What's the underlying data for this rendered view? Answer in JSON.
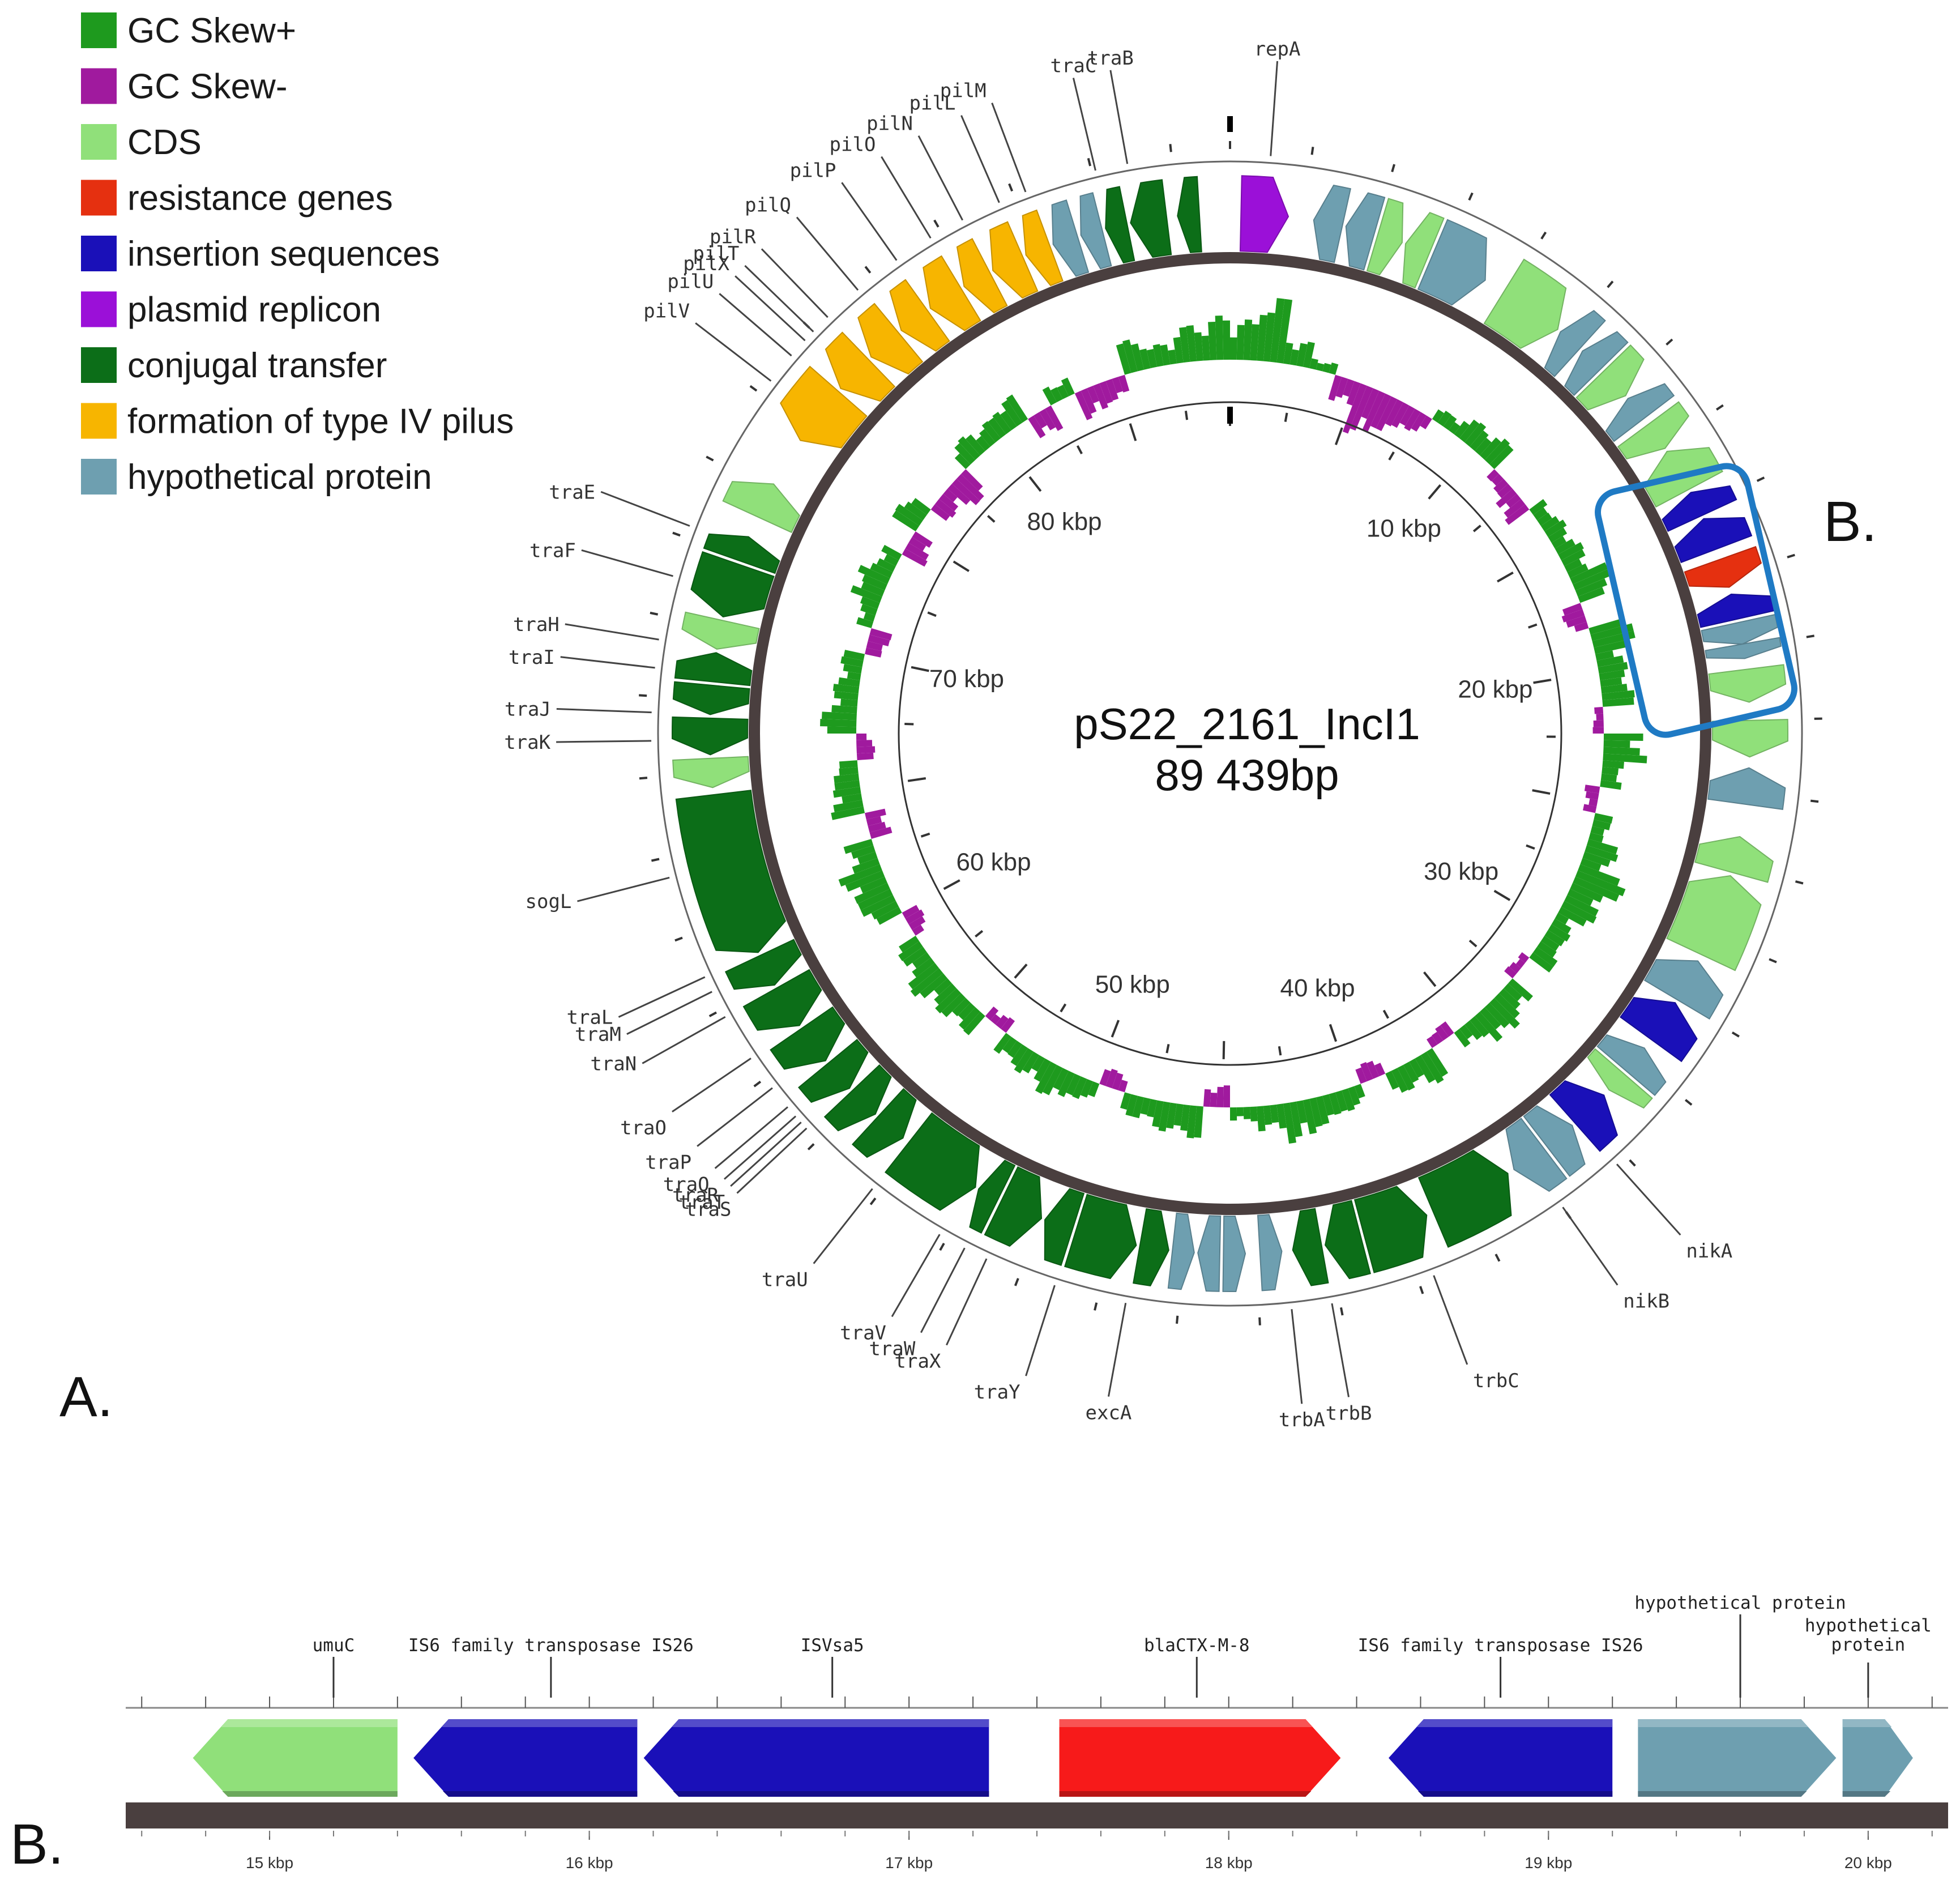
{
  "colors": {
    "gc_pos": "#1e9a1e",
    "gc_neg": "#a01a9e",
    "cds": "#90e07a",
    "resistance": "#e53010",
    "insertion": "#1a10b8",
    "replicon": "#9b10d8",
    "conjugal": "#0c6e18",
    "pilus": "#f7b500",
    "hypothetical": "#6e9fb0",
    "backbone": "#4a3f3f",
    "box": "#1f7ac4",
    "linear_red": "#f71a1a"
  },
  "legend": [
    {
      "label": "GC Skew+",
      "color": "#1e9a1e"
    },
    {
      "label": "GC Skew-",
      "color": "#a01a9e"
    },
    {
      "label": "CDS",
      "color": "#90e07a"
    },
    {
      "label": "resistance genes",
      "color": "#e53010"
    },
    {
      "label": "insertion sequences",
      "color": "#1a10b8"
    },
    {
      "label": "plasmid replicon",
      "color": "#9b10d8"
    },
    {
      "label": "conjugal transfer",
      "color": "#0c6e18"
    },
    {
      "label": "formation of type IV pilus",
      "color": "#f7b500"
    },
    {
      "label": "hypothetical protein",
      "color": "#6e9fb0"
    }
  ],
  "plasmid": {
    "name": "pS22_2161_IncI1",
    "size_label": "89 439bp",
    "length_bp": 89439
  },
  "kbp_labels": [
    "10 kbp",
    "20 kbp",
    "30 kbp",
    "40 kbp",
    "50 kbp",
    "60 kbp",
    "70 kbp",
    "80 kbp"
  ],
  "genes_circular": [
    {
      "name": "repA",
      "kb": 1.0
    },
    {
      "name": "traB",
      "kb": 86.9
    },
    {
      "name": "traC",
      "kb": 86.1
    },
    {
      "name": "pilM",
      "kb": 84.3
    },
    {
      "name": "pilL",
      "kb": 83.6
    },
    {
      "name": "pilN",
      "kb": 82.6
    },
    {
      "name": "pilO",
      "kb": 81.7
    },
    {
      "name": "pilP",
      "kb": 80.7
    },
    {
      "name": "pilQ",
      "kb": 79.5
    },
    {
      "name": "pilR",
      "kb": 78.5
    },
    {
      "name": "pilT",
      "kb": 78.0
    },
    {
      "name": "pilX",
      "kb": 77.7
    },
    {
      "name": "pilU",
      "kb": 77.2
    },
    {
      "name": "pilV",
      "kb": 76.4
    },
    {
      "name": "traE",
      "kb": 72.3
    },
    {
      "name": "traF",
      "kb": 71.0
    },
    {
      "name": "traH",
      "kb": 69.4
    },
    {
      "name": "traI",
      "kb": 68.7
    },
    {
      "name": "traJ",
      "kb": 67.6
    },
    {
      "name": "traK",
      "kb": 66.9
    },
    {
      "name": "sogL",
      "kb": 63.5
    },
    {
      "name": "traL",
      "kb": 60.9
    },
    {
      "name": "traM",
      "kb": 60.5
    },
    {
      "name": "traN",
      "kb": 59.8
    },
    {
      "name": "traO",
      "kb": 58.6
    },
    {
      "name": "traP",
      "kb": 57.7
    },
    {
      "name": "traQ",
      "kb": 57.1
    },
    {
      "name": "traT",
      "kb": 56.6
    },
    {
      "name": "traR",
      "kb": 56.8
    },
    {
      "name": "traS",
      "kb": 56.4
    },
    {
      "name": "traU",
      "kb": 54.2
    },
    {
      "name": "traV",
      "kb": 52.2
    },
    {
      "name": "traW",
      "kb": 51.5
    },
    {
      "name": "traX",
      "kb": 50.9
    },
    {
      "name": "traY",
      "kb": 49.1
    },
    {
      "name": "excA",
      "kb": 47.3
    },
    {
      "name": "trbA",
      "kb": 43.2
    },
    {
      "name": "trbB",
      "kb": 42.2
    },
    {
      "name": "trbC",
      "kb": 39.6
    },
    {
      "name": "nikB",
      "kb": 36.0
    },
    {
      "name": "nikA",
      "kb": 34.3
    }
  ],
  "features_circular": [
    {
      "start": 0.3,
      "end": 1.6,
      "strand": 1,
      "cat": "replicon"
    },
    {
      "start": 2.3,
      "end": 3.1,
      "strand": -1,
      "cat": "hypothetical"
    },
    {
      "start": 3.2,
      "end": 4.0,
      "strand": -1,
      "cat": "hypothetical"
    },
    {
      "start": 4.1,
      "end": 4.8,
      "strand": 1,
      "cat": "cds"
    },
    {
      "start": 4.9,
      "end": 5.6,
      "strand": -1,
      "cat": "cds"
    },
    {
      "start": 5.7,
      "end": 7.3,
      "strand": 1,
      "cat": "hypothetical"
    },
    {
      "start": 7.9,
      "end": 9.7,
      "strand": 1,
      "cat": "cds"
    },
    {
      "start": 9.8,
      "end": 10.5,
      "strand": -1,
      "cat": "hypothetical"
    },
    {
      "start": 10.6,
      "end": 11.3,
      "strand": -1,
      "cat": "hypothetical"
    },
    {
      "start": 11.4,
      "end": 12.3,
      "strand": 1,
      "cat": "cds"
    },
    {
      "start": 12.4,
      "end": 13.1,
      "strand": -1,
      "cat": "hypothetical"
    },
    {
      "start": 13.3,
      "end": 14.1,
      "strand": 1,
      "cat": "cds"
    },
    {
      "start": 14.2,
      "end": 15.4,
      "strand": -1,
      "cat": "cds"
    },
    {
      "start": 15.5,
      "end": 16.2,
      "strand": -1,
      "cat": "insertion"
    },
    {
      "start": 16.3,
      "end": 17.2,
      "strand": -1,
      "cat": "insertion"
    },
    {
      "start": 17.5,
      "end": 18.3,
      "strand": 1,
      "cat": "resistance"
    },
    {
      "start": 18.5,
      "end": 19.2,
      "strand": -1,
      "cat": "insertion"
    },
    {
      "start": 19.3,
      "end": 19.9,
      "strand": 1,
      "cat": "hypothetical"
    },
    {
      "start": 19.9,
      "end": 20.3,
      "strand": 1,
      "cat": "hypothetical"
    },
    {
      "start": 20.6,
      "end": 21.5,
      "strand": 1,
      "cat": "cds"
    },
    {
      "start": 22.0,
      "end": 23.0,
      "strand": 1,
      "cat": "cds"
    },
    {
      "start": 23.3,
      "end": 24.3,
      "strand": -1,
      "cat": "hypothetical"
    },
    {
      "start": 25.2,
      "end": 26.2,
      "strand": -1,
      "cat": "cds"
    },
    {
      "start": 26.3,
      "end": 28.6,
      "strand": -1,
      "cat": "cds"
    },
    {
      "start": 28.8,
      "end": 30.0,
      "strand": -1,
      "cat": "hypothetical"
    },
    {
      "start": 30.1,
      "end": 31.3,
      "strand": -1,
      "cat": "insertion"
    },
    {
      "start": 31.6,
      "end": 32.4,
      "strand": -1,
      "cat": "hypothetical"
    },
    {
      "start": 32.5,
      "end": 33.1,
      "strand": 1,
      "cat": "cds"
    },
    {
      "start": 33.3,
      "end": 34.4,
      "strand": -1,
      "cat": "insertion"
    },
    {
      "start": 34.5,
      "end": 35.4,
      "strand": -1,
      "cat": "hypothetical"
    },
    {
      "start": 35.5,
      "end": 36.5,
      "strand": 1,
      "cat": "hypothetical"
    },
    {
      "start": 36.7,
      "end": 39.0,
      "strand": -1,
      "cat": "conjugal"
    },
    {
      "start": 39.2,
      "end": 41.0,
      "strand": -1,
      "cat": "conjugal"
    },
    {
      "start": 41.1,
      "end": 42.1,
      "strand": 1,
      "cat": "conjugal"
    },
    {
      "start": 42.2,
      "end": 43.0,
      "strand": 1,
      "cat": "conjugal"
    },
    {
      "start": 43.3,
      "end": 43.9,
      "strand": -1,
      "cat": "hypothetical"
    },
    {
      "start": 44.3,
      "end": 44.9,
      "strand": -1,
      "cat": "hypothetical"
    },
    {
      "start": 45.0,
      "end": 45.6,
      "strand": 1,
      "cat": "hypothetical"
    },
    {
      "start": 45.7,
      "end": 46.3,
      "strand": -1,
      "cat": "hypothetical"
    },
    {
      "start": 46.4,
      "end": 47.2,
      "strand": -1,
      "cat": "conjugal"
    },
    {
      "start": 47.3,
      "end": 49.0,
      "strand": -1,
      "cat": "conjugal"
    },
    {
      "start": 49.1,
      "end": 49.9,
      "strand": 1,
      "cat": "conjugal"
    },
    {
      "start": 50.0,
      "end": 51.2,
      "strand": -1,
      "cat": "conjugal"
    },
    {
      "start": 51.3,
      "end": 51.9,
      "strand": 1,
      "cat": "conjugal"
    },
    {
      "start": 52.0,
      "end": 54.2,
      "strand": -1,
      "cat": "conjugal"
    },
    {
      "start": 54.4,
      "end": 55.3,
      "strand": -1,
      "cat": "conjugal"
    },
    {
      "start": 55.4,
      "end": 56.3,
      "strand": -1,
      "cat": "conjugal"
    },
    {
      "start": 56.4,
      "end": 57.3,
      "strand": -1,
      "cat": "conjugal"
    },
    {
      "start": 57.4,
      "end": 58.5,
      "strand": -1,
      "cat": "conjugal"
    },
    {
      "start": 58.6,
      "end": 59.8,
      "strand": -1,
      "cat": "conjugal"
    },
    {
      "start": 59.9,
      "end": 60.8,
      "strand": -1,
      "cat": "conjugal"
    },
    {
      "start": 60.9,
      "end": 65.4,
      "strand": -1,
      "cat": "conjugal"
    },
    {
      "start": 65.6,
      "end": 66.4,
      "strand": -1,
      "cat": "cds"
    },
    {
      "start": 66.5,
      "end": 67.5,
      "strand": -1,
      "cat": "conjugal"
    },
    {
      "start": 67.6,
      "end": 68.4,
      "strand": -1,
      "cat": "conjugal"
    },
    {
      "start": 68.5,
      "end": 69.3,
      "strand": 1,
      "cat": "conjugal"
    },
    {
      "start": 69.4,
      "end": 70.2,
      "strand": -1,
      "cat": "cds"
    },
    {
      "start": 70.3,
      "end": 71.8,
      "strand": -1,
      "cat": "conjugal"
    },
    {
      "start": 71.9,
      "end": 72.6,
      "strand": 1,
      "cat": "conjugal"
    },
    {
      "start": 73.2,
      "end": 74.2,
      "strand": 1,
      "cat": "cds"
    },
    {
      "start": 75.6,
      "end": 77.3,
      "strand": -1,
      "cat": "pilus"
    },
    {
      "start": 77.4,
      "end": 78.5,
      "strand": -1,
      "cat": "pilus"
    },
    {
      "start": 78.6,
      "end": 79.6,
      "strand": -1,
      "cat": "pilus"
    },
    {
      "start": 79.7,
      "end": 80.6,
      "strand": -1,
      "cat": "pilus"
    },
    {
      "start": 80.7,
      "end": 81.7,
      "strand": -1,
      "cat": "pilus"
    },
    {
      "start": 81.8,
      "end": 82.6,
      "strand": -1,
      "cat": "pilus"
    },
    {
      "start": 82.7,
      "end": 83.6,
      "strand": -1,
      "cat": "pilus"
    },
    {
      "start": 83.7,
      "end": 84.4,
      "strand": -1,
      "cat": "pilus"
    },
    {
      "start": 84.5,
      "end": 85.2,
      "strand": -1,
      "cat": "hypothetical"
    },
    {
      "start": 85.3,
      "end": 85.9,
      "strand": -1,
      "cat": "hypothetical"
    },
    {
      "start": 86.0,
      "end": 86.6,
      "strand": -1,
      "cat": "conjugal"
    },
    {
      "start": 86.7,
      "end": 87.7,
      "strand": -1,
      "cat": "conjugal"
    },
    {
      "start": 88.0,
      "end": 88.6,
      "strand": -1,
      "cat": "conjugal"
    }
  ],
  "gc_skew": [
    0.55,
    0.9,
    0.35,
    0.15,
    -0.35,
    -0.7,
    -0.5,
    -0.3,
    0.2,
    0.35,
    0.4,
    -0.2,
    -0.35,
    0.25,
    0.3,
    0.35,
    0.55,
    -0.3,
    0.6,
    0.4,
    0.45,
    -0.15,
    0.6,
    0.3,
    -0.2,
    0.25,
    0.45,
    0.7,
    0.5,
    0.3,
    0.35,
    -0.15,
    0.4,
    0.5,
    0.3,
    -0.2,
    0.45,
    0.35,
    -0.25,
    0.3,
    0.4,
    0.55,
    0.35,
    0.2,
    -0.3,
    0.45,
    0.4,
    0.3,
    -0.25,
    0.3,
    0.45,
    0.35,
    0.3,
    -0.2,
    0.35,
    0.4,
    0.5,
    0.35,
    -0.25,
    0.5,
    0.6,
    0.4,
    -0.3,
    0.45,
    0.35,
    -0.25,
    0.5,
    0.35,
    0.3,
    -0.3,
    0.25,
    0.45,
    0.3,
    -0.35,
    0.4,
    -0.3,
    -0.45,
    0.35,
    0.3,
    0.4,
    -0.35,
    0.25,
    -0.4,
    -0.3,
    0.45,
    0.3,
    0.5,
    0.6
  ],
  "panel_a_label": "A.",
  "panel_b_label": "B.",
  "box_label": "B.",
  "linear": {
    "range_kbp": [
      14.55,
      20.25
    ],
    "tick_labels": [
      {
        "kbp": 15,
        "label": "15 kbp"
      },
      {
        "kbp": 16,
        "label": "16 kbp"
      },
      {
        "kbp": 17,
        "label": "17 kbp"
      },
      {
        "kbp": 18,
        "label": "18 kbp"
      },
      {
        "kbp": 19,
        "label": "19 kbp"
      },
      {
        "kbp": 20,
        "label": "20 kbp"
      }
    ],
    "features": [
      {
        "start": 14.76,
        "end": 15.4,
        "strand": -1,
        "cat": "cds",
        "label": "umuC",
        "label_kbp": 15.2
      },
      {
        "start": 15.45,
        "end": 16.15,
        "strand": -1,
        "cat": "insertion",
        "label": "IS6 family transposase IS26",
        "label_kbp": 15.88
      },
      {
        "start": 16.17,
        "end": 17.25,
        "strand": -1,
        "cat": "insertion",
        "label": "ISVsa5",
        "label_kbp": 16.76
      },
      {
        "start": 17.47,
        "end": 18.35,
        "strand": 1,
        "cat": "resistance",
        "label": "blaCTX-M-8",
        "label_kbp": 17.9
      },
      {
        "start": 18.5,
        "end": 19.2,
        "strand": -1,
        "cat": "insertion",
        "label": "IS6 family transposase IS26",
        "label_kbp": 18.85
      },
      {
        "start": 19.28,
        "end": 19.9,
        "strand": 1,
        "cat": "hypothetical",
        "label": "hypothetical protein",
        "label_kbp": 19.6
      },
      {
        "start": 19.92,
        "end": 20.14,
        "strand": 1,
        "cat": "hypothetical",
        "label": "hypothetical\nprotein",
        "label_kbp": 20.0
      }
    ]
  }
}
